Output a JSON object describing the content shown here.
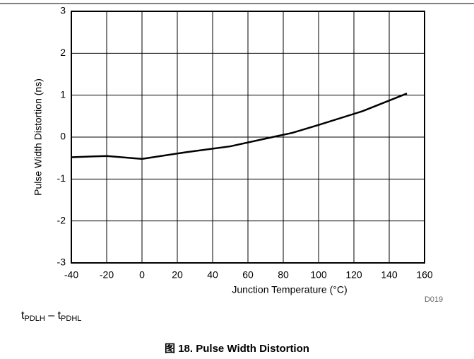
{
  "chart_data": {
    "type": "line",
    "x_label": "Junction Temperature (°C)",
    "y_label": "Pulse Width Distortion (ns)",
    "code": "D019",
    "x": [
      -40,
      -20,
      0,
      25,
      50,
      75,
      85,
      100,
      125,
      150
    ],
    "series": [
      {
        "color": "#000000",
        "values": [
          -0.48,
          -0.45,
          -0.52,
          -0.36,
          -0.22,
          0.01,
          0.1,
          0.29,
          0.62,
          1.04
        ]
      }
    ],
    "xlim": [
      -40,
      160
    ],
    "xticks": [
      -40,
      -20,
      0,
      20,
      40,
      60,
      80,
      100,
      120,
      140,
      160
    ],
    "ylim": [
      -3,
      3
    ],
    "yticks": [
      -3,
      -2,
      -1,
      0,
      1,
      2,
      3
    ],
    "grid": true
  },
  "note": [
    "t",
    "PDLH",
    "– t",
    "PDHL"
  ],
  "figure_title": "图 18. Pulse Width Distortion"
}
